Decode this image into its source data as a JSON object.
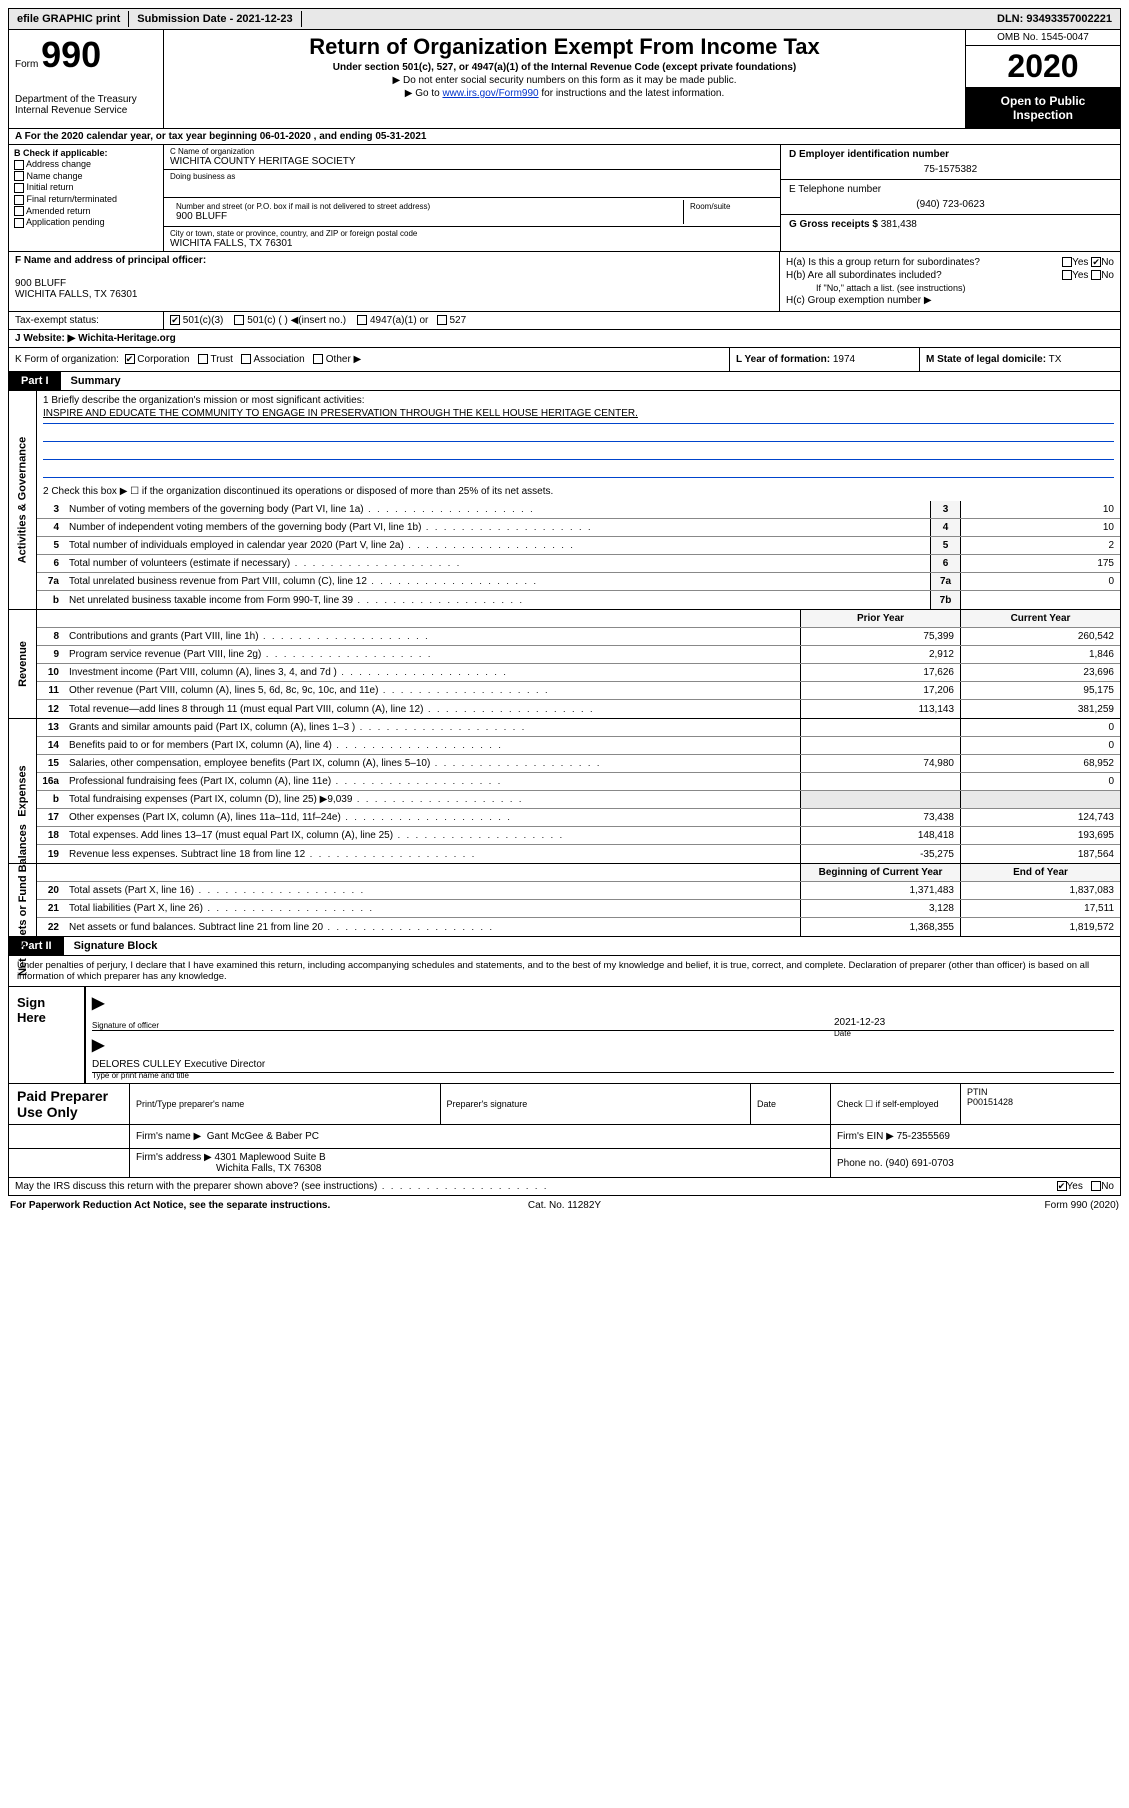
{
  "topbar": {
    "efile": "efile GRAPHIC print",
    "submission": "Submission Date - 2021-12-23",
    "dln": "DLN: 93493357002221"
  },
  "header": {
    "form_prefix": "Form",
    "form_number": "990",
    "dept": "Department of the Treasury",
    "irs": "Internal Revenue Service",
    "title": "Return of Organization Exempt From Income Tax",
    "sub1": "Under section 501(c), 527, or 4947(a)(1) of the Internal Revenue Code (except private foundations)",
    "sub2": "▶ Do not enter social security numbers on this form as it may be made public.",
    "sub3_pre": "▶ Go to ",
    "sub3_link": "www.irs.gov/Form990",
    "sub3_post": " for instructions and the latest information.",
    "omb": "OMB No. 1545-0047",
    "year": "2020",
    "pub": "Open to Public Inspection"
  },
  "lineA": "A For the 2020 calendar year, or tax year beginning 06-01-2020     , and ending 05-31-2021",
  "boxB": {
    "label": "B Check if applicable:",
    "items": [
      "Address change",
      "Name change",
      "Initial return",
      "Final return/terminated",
      "Amended return",
      "Application pending"
    ]
  },
  "boxC": {
    "name_lbl": "C Name of organization",
    "name": "WICHITA COUNTY HERITAGE SOCIETY",
    "dba_lbl": "Doing business as",
    "dba": "",
    "street_lbl": "Number and street (or P.O. box if mail is not delivered to street address)",
    "street": "900 BLUFF",
    "room_lbl": "Room/suite",
    "city_lbl": "City or town, state or province, country, and ZIP or foreign postal code",
    "city": "WICHITA FALLS, TX  76301"
  },
  "boxD": {
    "lbl": "D Employer identification number",
    "val": "75-1575382"
  },
  "boxE": {
    "lbl": "E Telephone number",
    "val": "(940) 723-0623"
  },
  "boxG": {
    "lbl": "G Gross receipts $",
    "val": "381,438"
  },
  "boxF": {
    "lbl": "F Name and address of principal officer:",
    "line1": "900 BLUFF",
    "line2": "WICHITA FALLS, TX  76301"
  },
  "boxH": {
    "a": "H(a)  Is this a group return for subordinates?",
    "a_yes": "Yes",
    "a_no": "No",
    "b": "H(b)  Are all subordinates included?",
    "b_note": "If \"No,\" attach a list. (see instructions)",
    "c": "H(c)  Group exemption number ▶"
  },
  "taxstatus": {
    "lbl": "Tax-exempt status:",
    "c501c3": "501(c)(3)",
    "c501c": "501(c) (  ) ◀(insert no.)",
    "c4947": "4947(a)(1) or",
    "c527": "527"
  },
  "boxJ": {
    "lbl": "J   Website: ▶",
    "val": "Wichita-Heritage.org"
  },
  "boxK": {
    "lbl": "K Form of organization:",
    "corp": "Corporation",
    "trust": "Trust",
    "assoc": "Association",
    "other": "Other ▶"
  },
  "boxL": {
    "lbl": "L Year of formation:",
    "val": "1974"
  },
  "boxM": {
    "lbl": "M State of legal domicile:",
    "val": "TX"
  },
  "partI": {
    "badge": "Part I",
    "title": "Summary"
  },
  "mission": {
    "lbl": "1   Briefly describe the organization's mission or most significant activities:",
    "text": "INSPIRE AND EDUCATE THE COMMUNITY TO ENGAGE IN PRESERVATION THROUGH THE KELL HOUSE HERITAGE CENTER."
  },
  "line2": "2   Check this box ▶ ☐  if the organization discontinued its operations or disposed of more than 25% of its net assets.",
  "gov_rows": [
    {
      "n": "3",
      "desc": "Number of voting members of the governing body (Part VI, line 1a)",
      "box": "3",
      "v": "10"
    },
    {
      "n": "4",
      "desc": "Number of independent voting members of the governing body (Part VI, line 1b)",
      "box": "4",
      "v": "10"
    },
    {
      "n": "5",
      "desc": "Total number of individuals employed in calendar year 2020 (Part V, line 2a)",
      "box": "5",
      "v": "2"
    },
    {
      "n": "6",
      "desc": "Total number of volunteers (estimate if necessary)",
      "box": "6",
      "v": "175"
    },
    {
      "n": "7a",
      "desc": "Total unrelated business revenue from Part VIII, column (C), line 12",
      "box": "7a",
      "v": "0"
    },
    {
      "n": "b",
      "desc": "Net unrelated business taxable income from Form 990-T, line 39",
      "box": "7b",
      "v": ""
    }
  ],
  "rev_hdr": {
    "prior": "Prior Year",
    "curr": "Current Year"
  },
  "rev_rows": [
    {
      "n": "8",
      "desc": "Contributions and grants (Part VIII, line 1h)",
      "p": "75,399",
      "c": "260,542"
    },
    {
      "n": "9",
      "desc": "Program service revenue (Part VIII, line 2g)",
      "p": "2,912",
      "c": "1,846"
    },
    {
      "n": "10",
      "desc": "Investment income (Part VIII, column (A), lines 3, 4, and 7d )",
      "p": "17,626",
      "c": "23,696"
    },
    {
      "n": "11",
      "desc": "Other revenue (Part VIII, column (A), lines 5, 6d, 8c, 9c, 10c, and 11e)",
      "p": "17,206",
      "c": "95,175"
    },
    {
      "n": "12",
      "desc": "Total revenue—add lines 8 through 11 (must equal Part VIII, column (A), line 12)",
      "p": "113,143",
      "c": "381,259"
    }
  ],
  "exp_rows": [
    {
      "n": "13",
      "desc": "Grants and similar amounts paid (Part IX, column (A), lines 1–3 )",
      "p": "",
      "c": "0"
    },
    {
      "n": "14",
      "desc": "Benefits paid to or for members (Part IX, column (A), line 4)",
      "p": "",
      "c": "0"
    },
    {
      "n": "15",
      "desc": "Salaries, other compensation, employee benefits (Part IX, column (A), lines 5–10)",
      "p": "74,980",
      "c": "68,952"
    },
    {
      "n": "16a",
      "desc": "Professional fundraising fees (Part IX, column (A), line 11e)",
      "p": "",
      "c": "0"
    },
    {
      "n": "b",
      "desc": "Total fundraising expenses (Part IX, column (D), line 25) ▶9,039",
      "p": "",
      "c": "",
      "gray": true
    },
    {
      "n": "17",
      "desc": "Other expenses (Part IX, column (A), lines 11a–11d, 11f–24e)",
      "p": "73,438",
      "c": "124,743"
    },
    {
      "n": "18",
      "desc": "Total expenses. Add lines 13–17 (must equal Part IX, column (A), line 25)",
      "p": "148,418",
      "c": "193,695"
    },
    {
      "n": "19",
      "desc": "Revenue less expenses. Subtract line 18 from line 12",
      "p": "-35,275",
      "c": "187,564"
    }
  ],
  "net_hdr": {
    "prior": "Beginning of Current Year",
    "curr": "End of Year"
  },
  "net_rows": [
    {
      "n": "20",
      "desc": "Total assets (Part X, line 16)",
      "p": "1,371,483",
      "c": "1,837,083"
    },
    {
      "n": "21",
      "desc": "Total liabilities (Part X, line 26)",
      "p": "3,128",
      "c": "17,511"
    },
    {
      "n": "22",
      "desc": "Net assets or fund balances. Subtract line 21 from line 20",
      "p": "1,368,355",
      "c": "1,819,572"
    }
  ],
  "sides": {
    "gov": "Activities & Governance",
    "rev": "Revenue",
    "exp": "Expenses",
    "net": "Net Assets or Fund Balances"
  },
  "partII": {
    "badge": "Part II",
    "title": "Signature Block"
  },
  "perjury": "Under penalties of perjury, I declare that I have examined this return, including accompanying schedules and statements, and to the best of my knowledge and belief, it is true, correct, and complete. Declaration of preparer (other than officer) is based on all information of which preparer has any knowledge.",
  "sign": {
    "here": "Sign Here",
    "sig_of_officer": "Signature of officer",
    "date": "Date",
    "date_val": "2021-12-23",
    "name_val": "DELORES CULLEY  Executive Director",
    "type_name": "Type or print name and title"
  },
  "paid": {
    "lbl": "Paid Preparer Use Only",
    "print_lbl": "Print/Type preparer's name",
    "sig_lbl": "Preparer's signature",
    "date_lbl": "Date",
    "check_lbl": "Check ☐ if self-employed",
    "ptin_lbl": "PTIN",
    "ptin_val": "P00151428",
    "firm_name_lbl": "Firm's name    ▶",
    "firm_name": "Gant McGee & Baber PC",
    "firm_ein_lbl": "Firm's EIN ▶",
    "firm_ein": "75-2355569",
    "firm_addr_lbl": "Firm's address ▶",
    "firm_addr1": "4301 Maplewood Suite B",
    "firm_addr2": "Wichita Falls, TX  76308",
    "phone_lbl": "Phone no.",
    "phone": "(940) 691-0703"
  },
  "discuss": {
    "text": "May the IRS discuss this return with the preparer shown above? (see instructions)",
    "yes": "Yes",
    "no": "No"
  },
  "footer": {
    "pra": "For Paperwork Reduction Act Notice, see the separate instructions.",
    "cat": "Cat. No. 11282Y",
    "form": "Form 990 (2020)"
  },
  "colors": {
    "link": "#0033cc",
    "black": "#000000",
    "gray_bg": "#e8e8e8"
  }
}
